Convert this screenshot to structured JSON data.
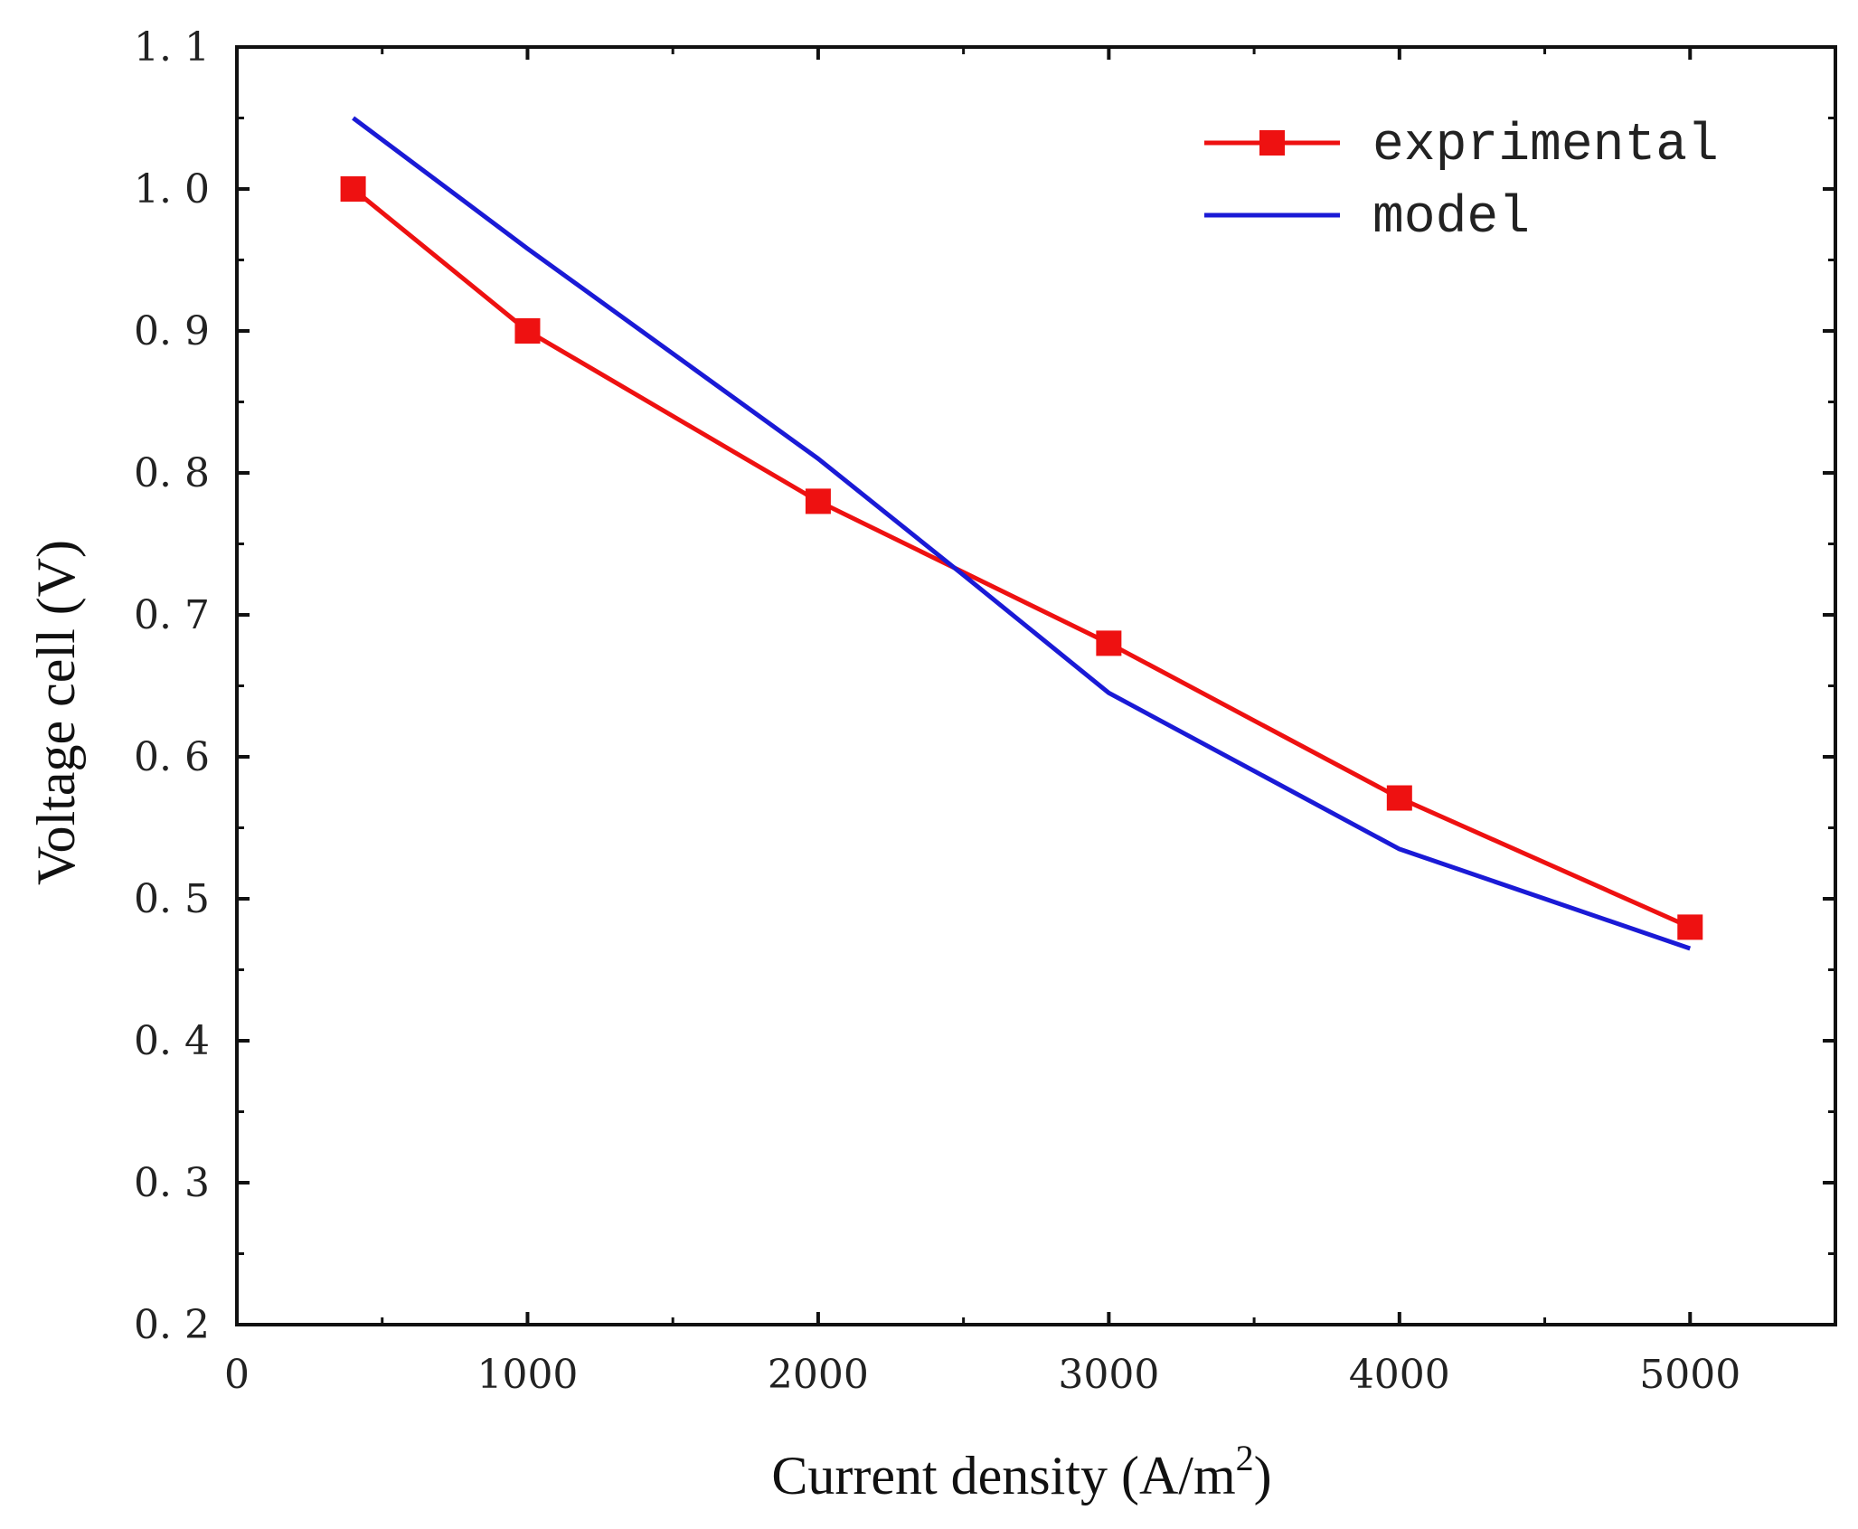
{
  "chart_data": {
    "type": "line",
    "xlabel": "Current density (A/m",
    "xlabel_sup": "2",
    "xlabel_end": ")",
    "ylabel": "Voltage cell (V)",
    "xlim": [
      0,
      5500
    ],
    "ylim": [
      0.2,
      1.1
    ],
    "x_ticks": [
      0,
      1000,
      2000,
      3000,
      4000,
      5000
    ],
    "x_tick_labels": [
      "0",
      "1000",
      "2000",
      "3000",
      "4000",
      "5000"
    ],
    "y_ticks": [
      0.2,
      0.3,
      0.4,
      0.5,
      0.6,
      0.7,
      0.8,
      0.9,
      1.0,
      1.1
    ],
    "y_tick_labels": [
      "0. 2",
      "0. 3",
      "0. 4",
      "0. 5",
      "0. 6",
      "0. 7",
      "0. 8",
      "0. 9",
      "1. 0",
      "1. 1"
    ],
    "grid": false,
    "legend_position": "top-right",
    "series": [
      {
        "name": "exprimental",
        "color": "#ee1111",
        "marker": "square",
        "x": [
          400,
          1000,
          2000,
          3000,
          4000,
          5000
        ],
        "y": [
          1.0,
          0.9,
          0.78,
          0.68,
          0.571,
          0.48
        ]
      },
      {
        "name": "model",
        "color": "#1a1ad6",
        "marker": "none",
        "x": [
          400,
          1000,
          2000,
          2500,
          3000,
          3500,
          4000,
          4500,
          5000
        ],
        "y": [
          1.05,
          0.958,
          0.81,
          0.728,
          0.645,
          0.59,
          0.535,
          0.5,
          0.465
        ]
      }
    ]
  }
}
